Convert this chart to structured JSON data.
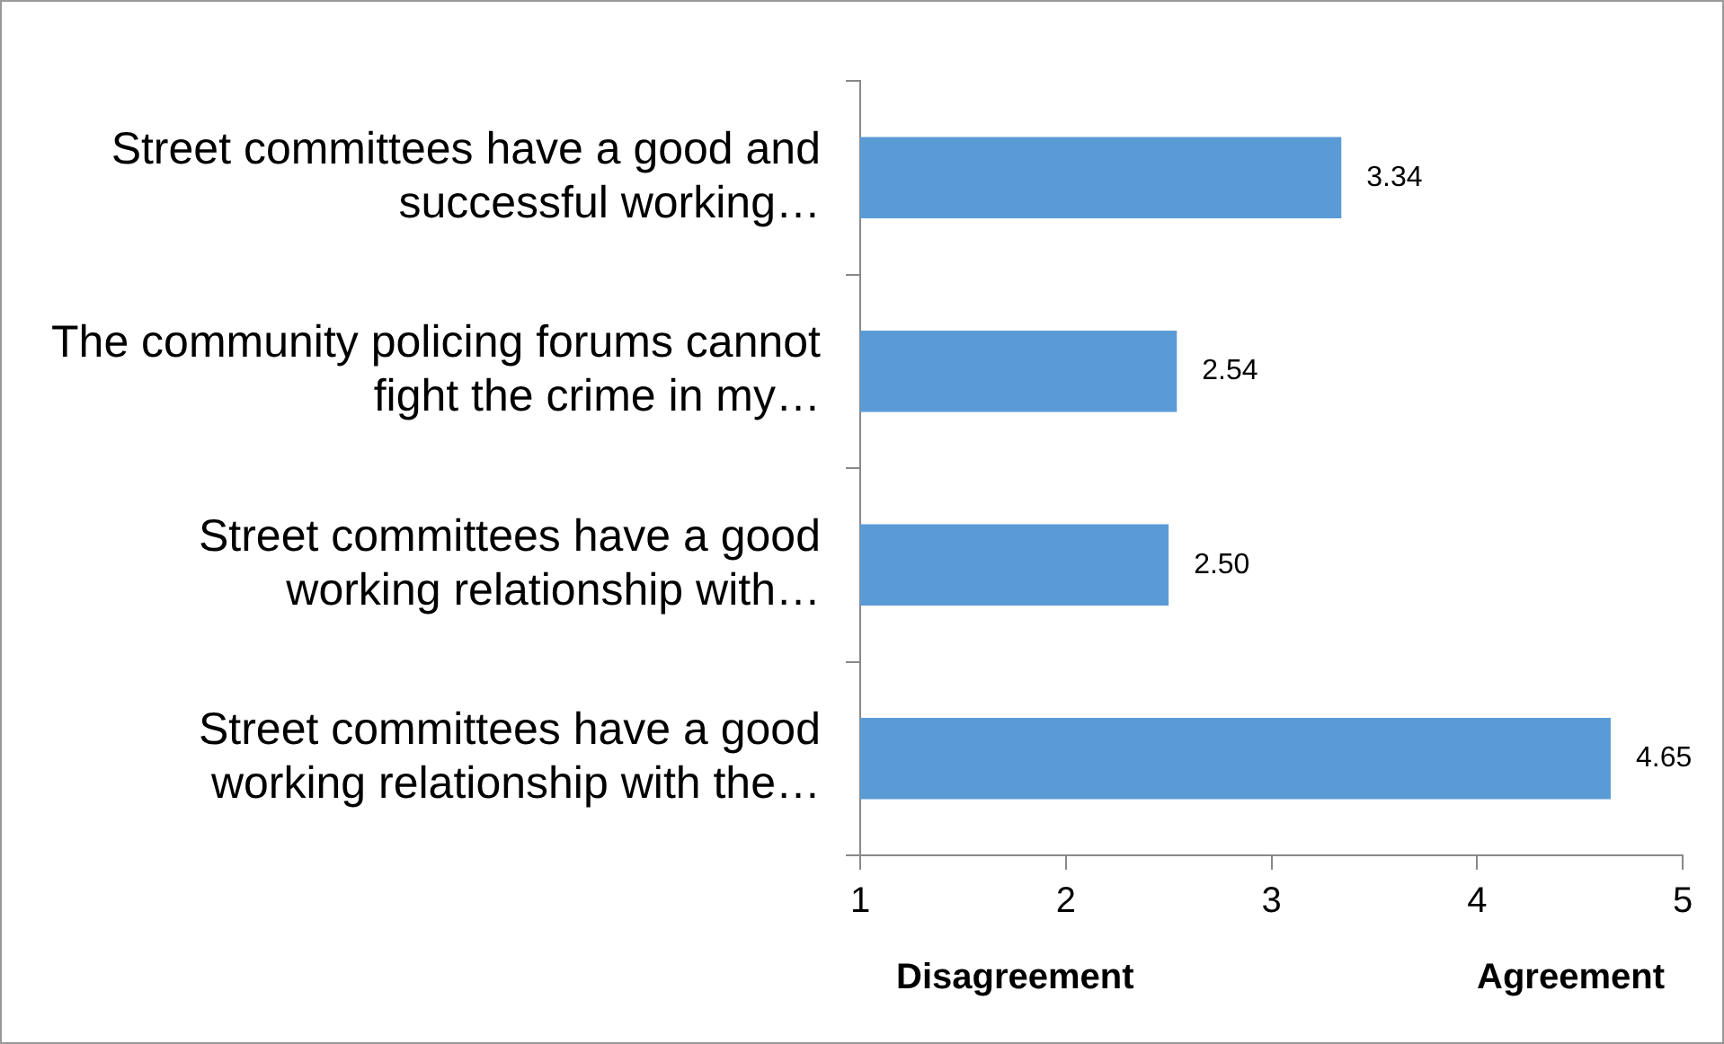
{
  "chart_data": {
    "type": "bar",
    "orientation": "horizontal",
    "categories": [
      "Street committees have a good and successful working…",
      "The community policing forums cannot fight the crime in my…",
      "Street committees have a good working relationship with…",
      "Street committees have a good working relationship with the…"
    ],
    "values": [
      3.34,
      2.54,
      2.5,
      4.65
    ],
    "value_labels": [
      "3.34",
      "2.54",
      "2.50",
      "4.65"
    ],
    "color": "#5b9bd5",
    "xlim": [
      1,
      5
    ],
    "xticks": [
      1,
      2,
      3,
      4,
      5
    ],
    "grid": false,
    "legend": false,
    "annotations": [
      "Disagreement",
      "Agreement"
    ]
  }
}
